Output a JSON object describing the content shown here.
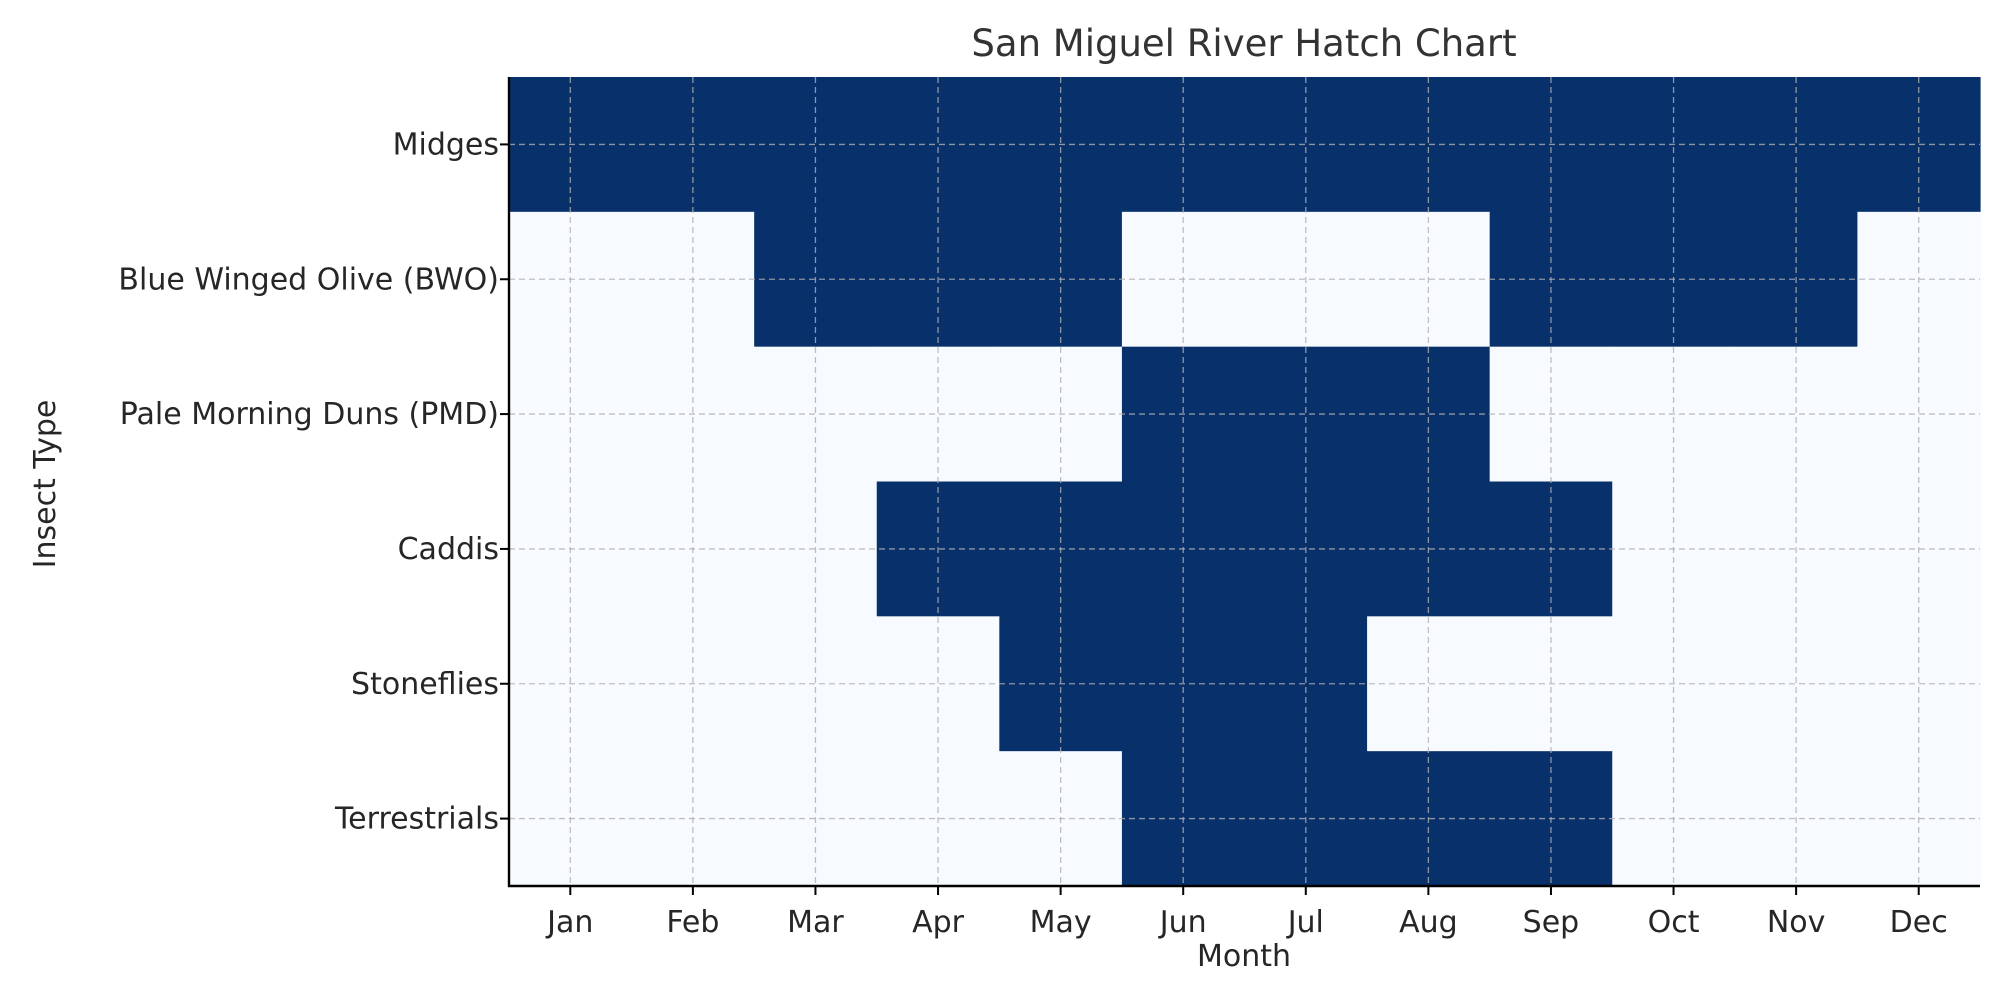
{
  "chart_data": {
    "type": "heatmap",
    "title": "San Miguel River Hatch Chart",
    "xlabel": "Month",
    "ylabel": "Insect Type",
    "x_categories": [
      "Jan",
      "Feb",
      "Mar",
      "Apr",
      "May",
      "Jun",
      "Jul",
      "Aug",
      "Sep",
      "Oct",
      "Nov",
      "Dec"
    ],
    "y_categories": [
      "Midges",
      "Blue Winged Olive (BWO)",
      "Pale Morning Duns (PMD)",
      "Caddis",
      "Stoneflies",
      "Terrestrials"
    ],
    "values": [
      [
        1,
        1,
        1,
        1,
        1,
        1,
        1,
        1,
        1,
        1,
        1,
        1
      ],
      [
        0,
        0,
        1,
        1,
        1,
        0,
        0,
        0,
        1,
        1,
        1,
        0
      ],
      [
        0,
        0,
        0,
        0,
        0,
        1,
        1,
        1,
        0,
        0,
        0,
        0
      ],
      [
        0,
        0,
        0,
        1,
        1,
        1,
        1,
        1,
        1,
        0,
        0,
        0
      ],
      [
        0,
        0,
        0,
        0,
        1,
        1,
        1,
        0,
        0,
        0,
        0,
        0
      ],
      [
        0,
        0,
        0,
        0,
        0,
        1,
        1,
        1,
        1,
        0,
        0,
        0
      ]
    ],
    "value_range": [
      0,
      1
    ],
    "colors": {
      "active": "#08306b",
      "inactive": "#f7fbff",
      "grid": "#b0b0b0",
      "axis": "#000000",
      "text": "#262626",
      "title": "#333333"
    },
    "grid": true,
    "legend": "none"
  }
}
